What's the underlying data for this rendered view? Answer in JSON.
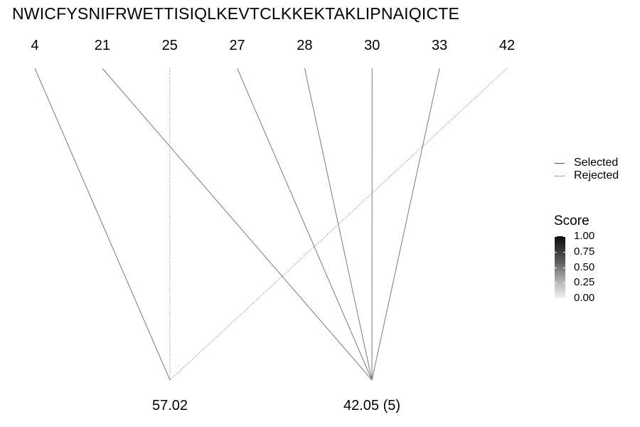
{
  "sequence": "NWICFYSNIFRWETTISIQLKEVTCLKKEKTAKLIPNAIQICTE",
  "chart_data": {
    "type": "tree",
    "positions": [
      "4",
      "21",
      "25",
      "27",
      "28",
      "30",
      "33",
      "42"
    ],
    "nodes": [
      {
        "label": "57.02"
      },
      {
        "label": "42.05 (5)"
      }
    ],
    "links": [
      {
        "from": "4",
        "to": "57.02",
        "status": "Selected"
      },
      {
        "from": "25",
        "to": "57.02",
        "status": "Rejected"
      },
      {
        "from": "42",
        "to": "57.02",
        "status": "Rejected"
      },
      {
        "from": "21",
        "to": "42.05 (5)",
        "status": "Selected"
      },
      {
        "from": "27",
        "to": "42.05 (5)",
        "status": "Selected"
      },
      {
        "from": "28",
        "to": "42.05 (5)",
        "status": "Selected"
      },
      {
        "from": "30",
        "to": "42.05 (5)",
        "status": "Selected"
      },
      {
        "from": "33",
        "to": "42.05 (5)",
        "status": "Selected"
      }
    ],
    "legend": {
      "items": [
        {
          "label": "Selected",
          "linetype": "solid"
        },
        {
          "label": "Rejected",
          "linetype": "dotted"
        }
      ],
      "position": "right"
    },
    "colorbar": {
      "title": "Score",
      "ticks": [
        "1.00",
        "0.75",
        "0.50",
        "0.25",
        "0.00"
      ],
      "range": [
        0,
        1
      ]
    },
    "line_color": "#7a7a7a"
  }
}
